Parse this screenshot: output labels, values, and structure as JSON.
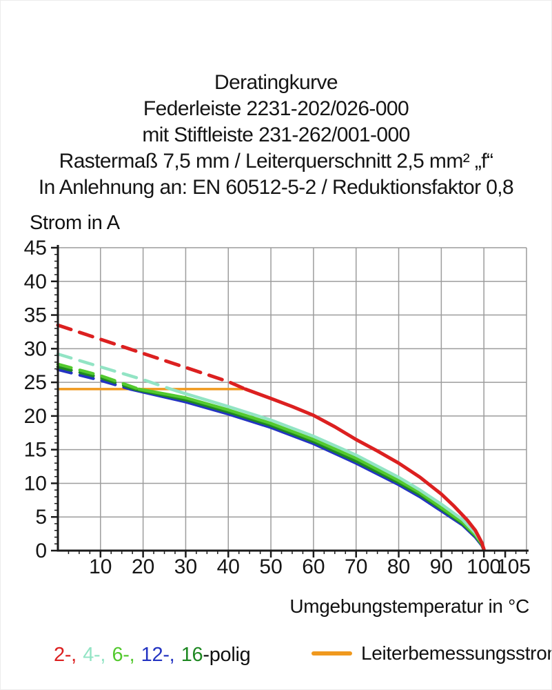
{
  "title_lines": [
    "Deratingkurve",
    "Federleiste 2231-202/026-000",
    "mit Stiftleiste 231-262/001-000",
    "Rastermaß 7,5 mm / Leiterquerschnitt 2,5 mm² „f“",
    "In Anlehnung an: EN 60512-5-2 / Reduktionsfaktor 0,8"
  ],
  "legend": {
    "poles": [
      {
        "label": "2-,",
        "color": "#dc2020"
      },
      {
        "label": "4-,",
        "color": "#92e4c4"
      },
      {
        "label": "6-,",
        "color": "#53c92e"
      },
      {
        "label": "12-,",
        "color": "#2434c2"
      },
      {
        "label": "16",
        "color": "#1e8822"
      }
    ],
    "poles_suffix": "-polig",
    "rated_current": {
      "label": "Leiterbemessungsstrom",
      "color": "#f0991e"
    }
  },
  "chart_data": {
    "type": "line",
    "title": "Deratingkurve",
    "subtitle": "Federleiste 2231-202/026-000 mit Stiftleiste 231-262/001-000, Rastermaß 7,5 mm / Leiterquerschnitt 2,5 mm² „f“, In Anlehnung an: EN 60512-5-2 / Reduktionsfaktor 0,8",
    "xlabel": "Umgebungstemperatur in °C",
    "ylabel": "Strom in A",
    "xlim": [
      0,
      110
    ],
    "ylim": [
      0,
      45
    ],
    "grid": {
      "x_lines": [
        10,
        20,
        30,
        40,
        50,
        60,
        70,
        80,
        90,
        100,
        110
      ],
      "y_lines": [
        5,
        10,
        15,
        20,
        25,
        30,
        35,
        40,
        45
      ]
    },
    "x_major_ticks": [
      10,
      20,
      30,
      40,
      50,
      60,
      70,
      80,
      90,
      100,
      105
    ],
    "x_minor_step": 2.5,
    "y_major_ticks": [
      0,
      5,
      10,
      15,
      20,
      25,
      30,
      35,
      40,
      45
    ],
    "y_minor_step": 1,
    "colors": {
      "grid": "#9c9c9c",
      "axis": "#1a1a1a"
    },
    "legend_position": "bottom",
    "rated_current_line": {
      "label": "Leiterbemessungsstrom",
      "y": 24,
      "x_start": 0,
      "x_end": 43.5,
      "color": "#f0991e"
    },
    "series": [
      {
        "name": "12-polig",
        "color": "#2434c2",
        "style_dashed_above_rated": true,
        "dashed_until_x": 17,
        "points": [
          [
            0,
            26.9
          ],
          [
            10,
            25.3
          ],
          [
            17,
            24
          ],
          [
            30,
            22.1
          ],
          [
            40,
            20.3
          ],
          [
            50,
            18.3
          ],
          [
            60,
            15.9
          ],
          [
            70,
            13.0
          ],
          [
            80,
            9.8
          ],
          [
            85,
            8.0
          ],
          [
            90,
            5.9
          ],
          [
            95,
            3.8
          ],
          [
            98,
            2.0
          ],
          [
            99.5,
            0.8
          ],
          [
            100,
            0.1
          ]
        ]
      },
      {
        "name": "16-polig",
        "color": "#1e8822",
        "style_dashed_above_rated": true,
        "dashed_until_x": 18,
        "points": [
          [
            0,
            27.3
          ],
          [
            10,
            25.7
          ],
          [
            18,
            24
          ],
          [
            30,
            22.4
          ],
          [
            40,
            20.6
          ],
          [
            50,
            18.6
          ],
          [
            60,
            16.2
          ],
          [
            70,
            13.3
          ],
          [
            80,
            10.1
          ],
          [
            85,
            8.3
          ],
          [
            90,
            6.2
          ],
          [
            95,
            4.0
          ],
          [
            98,
            2.2
          ],
          [
            99.5,
            0.9
          ],
          [
            100,
            0.1
          ]
        ]
      },
      {
        "name": "6-polig",
        "color": "#53c92e",
        "style_dashed_above_rated": true,
        "dashed_until_x": 19,
        "points": [
          [
            0,
            27.7
          ],
          [
            10,
            26.0
          ],
          [
            19,
            24
          ],
          [
            30,
            22.7
          ],
          [
            40,
            20.9
          ],
          [
            50,
            18.9
          ],
          [
            60,
            16.5
          ],
          [
            70,
            13.7
          ],
          [
            80,
            10.4
          ],
          [
            85,
            8.6
          ],
          [
            90,
            6.4
          ],
          [
            95,
            4.2
          ],
          [
            98,
            2.3
          ],
          [
            99.5,
            1.0
          ],
          [
            100,
            0.15
          ]
        ]
      },
      {
        "name": "4-polig",
        "color": "#92e4c4",
        "style_dashed_above_rated": true,
        "dashed_until_x": 26.5,
        "points": [
          [
            0,
            29.2
          ],
          [
            10,
            27.3
          ],
          [
            20,
            25.4
          ],
          [
            26.5,
            24
          ],
          [
            30,
            23.3
          ],
          [
            40,
            21.4
          ],
          [
            50,
            19.4
          ],
          [
            60,
            17.0
          ],
          [
            70,
            14.2
          ],
          [
            80,
            10.9
          ],
          [
            85,
            9.0
          ],
          [
            90,
            6.9
          ],
          [
            95,
            4.6
          ],
          [
            98,
            2.6
          ],
          [
            99.5,
            1.2
          ],
          [
            100,
            0.2
          ]
        ]
      },
      {
        "name": "2-polig",
        "color": "#dc2020",
        "style_dashed_above_rated": true,
        "dashed_until_x": 44,
        "points": [
          [
            0,
            33.5
          ],
          [
            10,
            31.4
          ],
          [
            20,
            29.3
          ],
          [
            30,
            27.2
          ],
          [
            40,
            25.1
          ],
          [
            44,
            24
          ],
          [
            50,
            22.6
          ],
          [
            55,
            21.4
          ],
          [
            60,
            20.1
          ],
          [
            65,
            18.4
          ],
          [
            70,
            16.5
          ],
          [
            75,
            14.8
          ],
          [
            80,
            13.0
          ],
          [
            85,
            10.9
          ],
          [
            90,
            8.4
          ],
          [
            93,
            6.6
          ],
          [
            96,
            4.6
          ],
          [
            98,
            3.0
          ],
          [
            99.5,
            1.2
          ],
          [
            100,
            0.2
          ]
        ]
      }
    ]
  }
}
